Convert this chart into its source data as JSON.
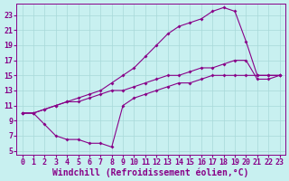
{
  "background_color": "#c8f0f0",
  "line_color": "#880088",
  "grid_color": "#a8d8d8",
  "xlabel": "Windchill (Refroidissement éolien,°C)",
  "xlabel_fontsize": 7,
  "tick_fontsize": 6,
  "xlim": [
    -0.5,
    23.5
  ],
  "ylim": [
    4.5,
    24.5
  ],
  "yticks": [
    5,
    7,
    9,
    11,
    13,
    15,
    17,
    19,
    21,
    23
  ],
  "xticks": [
    0,
    1,
    2,
    3,
    4,
    5,
    6,
    7,
    8,
    9,
    10,
    11,
    12,
    13,
    14,
    15,
    16,
    17,
    18,
    19,
    20,
    21,
    22,
    23
  ],
  "line1_x": [
    0,
    1,
    2,
    3,
    4,
    5,
    6,
    7,
    8,
    9,
    10,
    11,
    12,
    13,
    14,
    15,
    16,
    17,
    18,
    19,
    20,
    21,
    22,
    23
  ],
  "line1_y": [
    10,
    10,
    10.5,
    11,
    11.5,
    12,
    12.5,
    13,
    14,
    15,
    16,
    17.5,
    19,
    20.5,
    21.5,
    22,
    22.5,
    23.5,
    24,
    23.5,
    19.5,
    15,
    15,
    15
  ],
  "line2_x": [
    0,
    1,
    2,
    3,
    4,
    5,
    6,
    7,
    8,
    9,
    10,
    11,
    12,
    13,
    14,
    15,
    16,
    17,
    18,
    19,
    20,
    21,
    22,
    23
  ],
  "line2_y": [
    10,
    10,
    10.5,
    11,
    11.5,
    11.5,
    12,
    12.5,
    13,
    13,
    13.5,
    14,
    14.5,
    15,
    15,
    15.5,
    16,
    16,
    16.5,
    17,
    17,
    14.5,
    14.5,
    15
  ],
  "line3_x": [
    0,
    1,
    2,
    3,
    4,
    5,
    6,
    7,
    8,
    9,
    10,
    11,
    12,
    13,
    14,
    15,
    16,
    17,
    18,
    19,
    20,
    21,
    22,
    23
  ],
  "line3_y": [
    10,
    10,
    8.5,
    7,
    6.5,
    6.5,
    6,
    6,
    5.5,
    11,
    12,
    12.5,
    13,
    13.5,
    14,
    14,
    14.5,
    15,
    15,
    15,
    15,
    15,
    15,
    15
  ]
}
